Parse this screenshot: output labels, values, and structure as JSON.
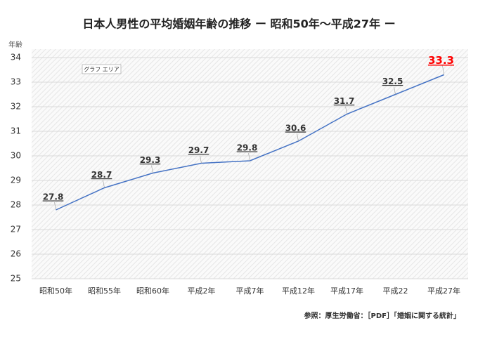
{
  "chart_data": {
    "type": "line",
    "title": "日本人男性の平均婚姻年齢の推移 ー 昭和50年～平成27年 ー",
    "y_label": "年齢",
    "annotation": "グラフ エリア",
    "source": "参照：厚生労働省：［PDF］「婚姻に関する統計」",
    "categories": [
      "昭和50年",
      "昭和55年",
      "昭和60年",
      "平成2年",
      "平成7年",
      "平成12年",
      "平成17年",
      "平成22",
      "平成27年"
    ],
    "series": [
      {
        "name": "平均婚姻年齢",
        "color": "#4472c4",
        "values": [
          27.8,
          28.7,
          29.3,
          29.7,
          29.8,
          30.6,
          31.7,
          32.5,
          33.3
        ],
        "label_colors": [
          "#333333",
          "#333333",
          "#333333",
          "#333333",
          "#333333",
          "#333333",
          "#333333",
          "#333333",
          "#ff0000"
        ]
      }
    ],
    "ylim": [
      25,
      34
    ],
    "yticks": [
      25,
      26,
      27,
      28,
      29,
      30,
      31,
      32,
      33,
      34
    ],
    "grid": true
  }
}
